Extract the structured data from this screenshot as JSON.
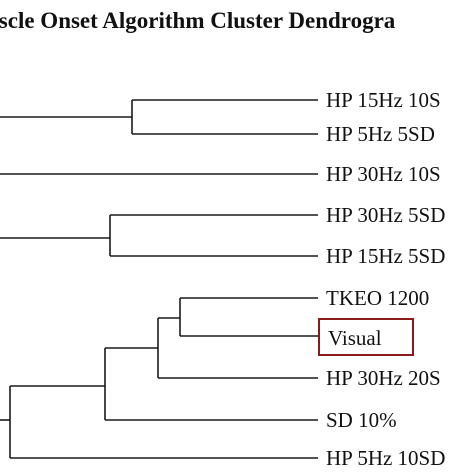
{
  "title": "uscle Onset Algorithm Cluster Dendrogra",
  "chart_data": {
    "type": "dendrogram",
    "leaves": [
      "HP 15Hz 10S",
      "HP 5Hz 5SD",
      "HP 30Hz 10S",
      "HP 30Hz 5SD",
      "HP 15Hz 5SD",
      "TKEO 1200",
      "Visual",
      "HP 30Hz 20S",
      "SD 10%",
      "HP 5Hz 10SD"
    ],
    "highlighted_leaf": "Visual",
    "highlight_color": "#8b1a1a",
    "line_color": "#1a1a1a"
  }
}
